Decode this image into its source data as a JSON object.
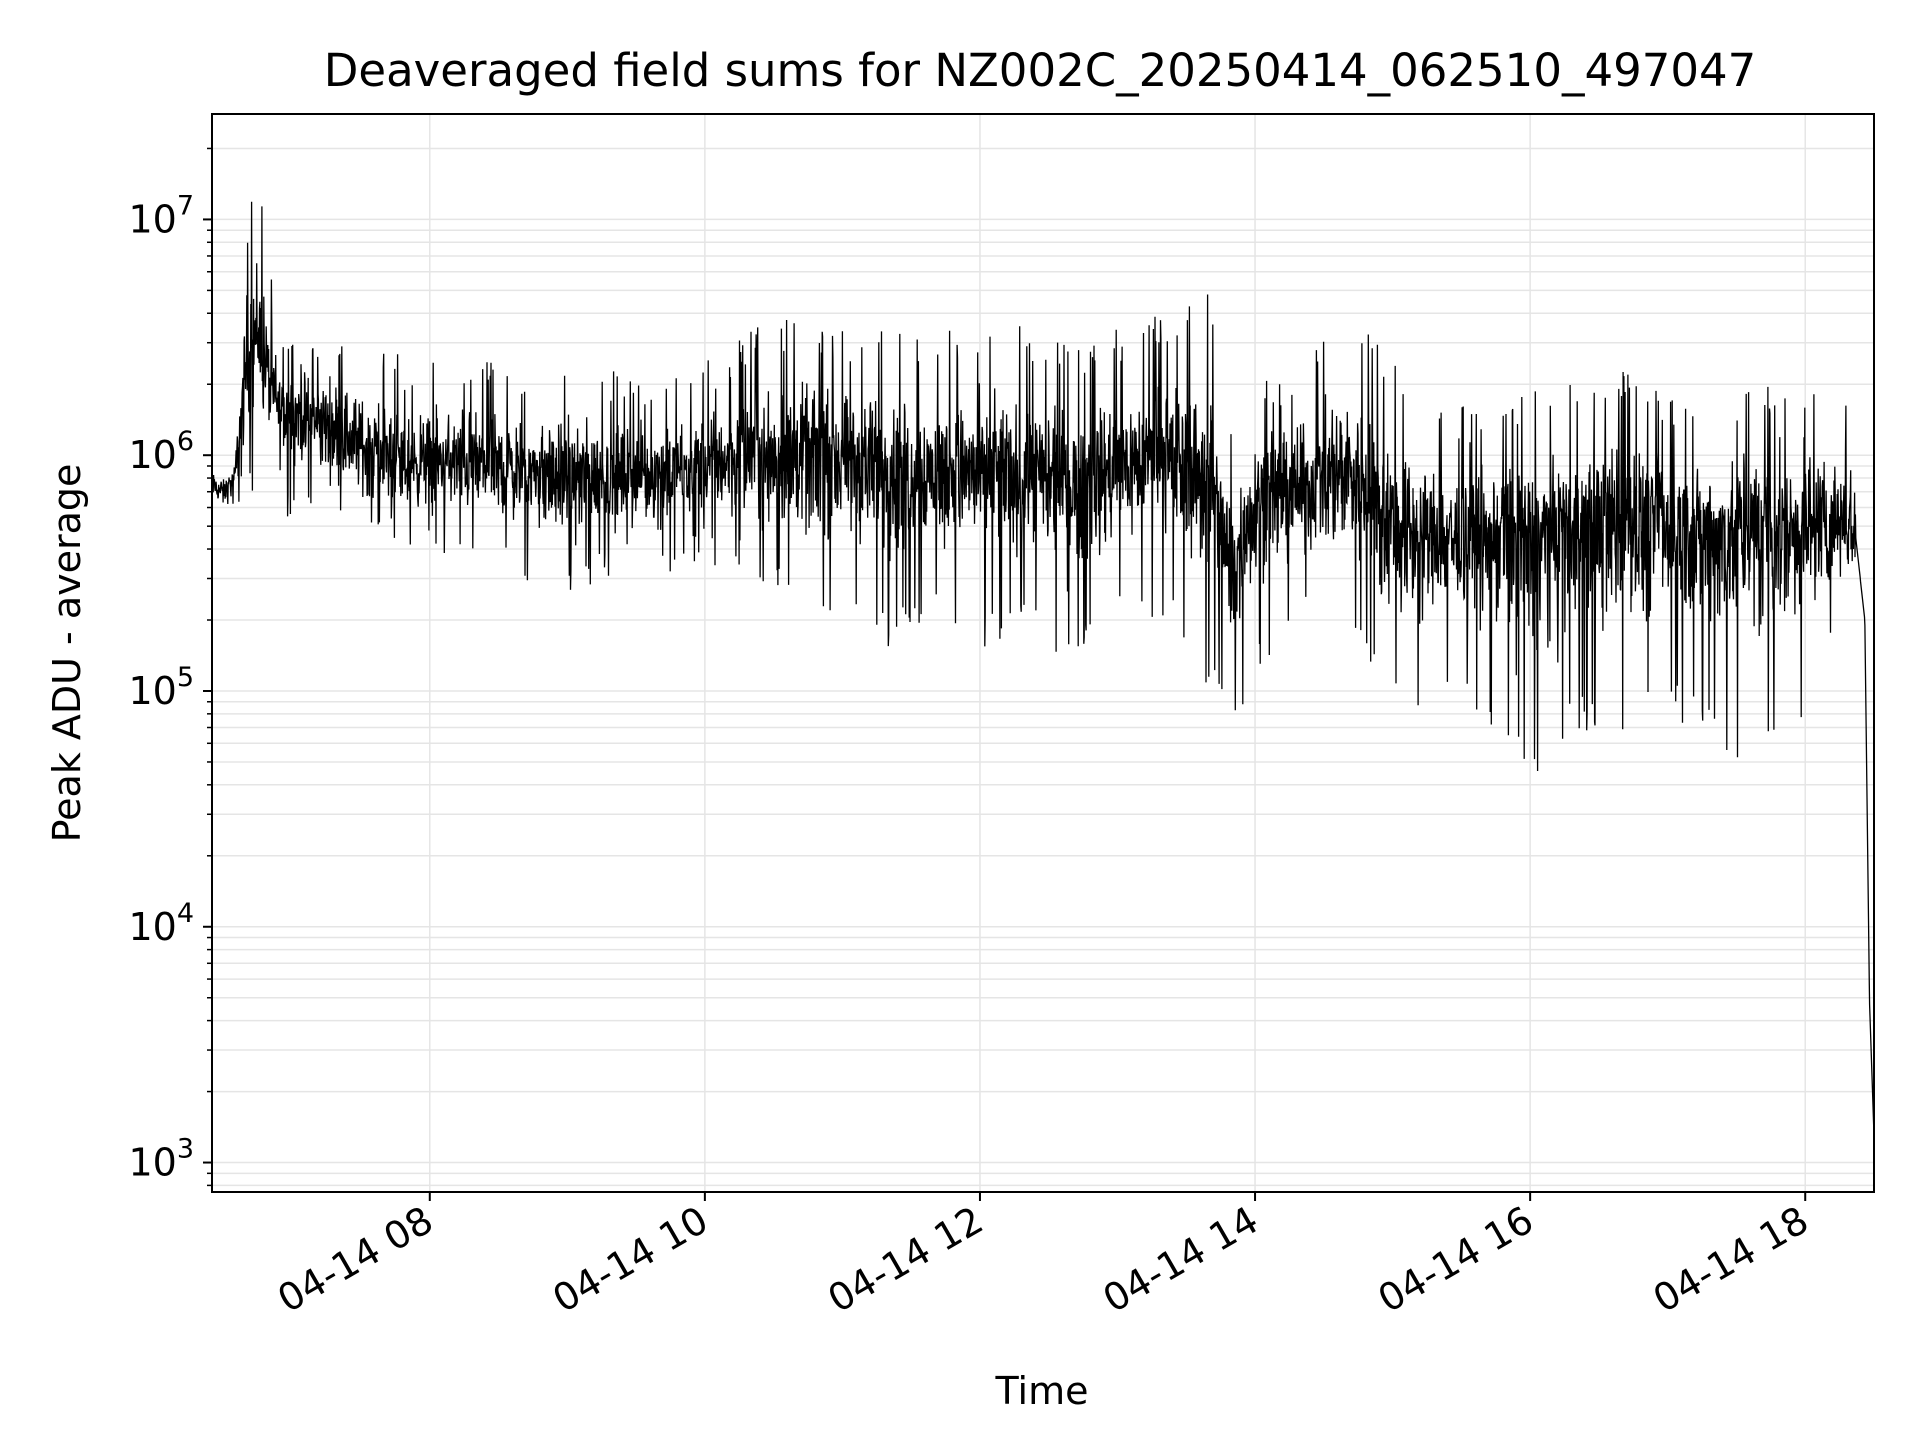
{
  "chart_data": {
    "type": "line",
    "title": "Deaveraged field sums for NZ002C_20250414_062510_497047",
    "xlabel": "Time",
    "ylabel": "Peak ADU - average",
    "x_scale": "time",
    "y_scale": "log",
    "xlim": [
      "2025-04-14 06:25",
      "2025-04-14 18:30"
    ],
    "ylim": [
      750,
      28000000
    ],
    "grid": true,
    "legend": "none",
    "line_color": "#000000",
    "grid_color": "#e5e5e5",
    "x_ticks": [
      {
        "value": "2025-04-14 08:00",
        "label": "04-14 08"
      },
      {
        "value": "2025-04-14 10:00",
        "label": "04-14 10"
      },
      {
        "value": "2025-04-14 12:00",
        "label": "04-14 12"
      },
      {
        "value": "2025-04-14 14:00",
        "label": "04-14 14"
      },
      {
        "value": "2025-04-14 16:00",
        "label": "04-14 16"
      },
      {
        "value": "2025-04-14 18:00",
        "label": "04-14 18"
      }
    ],
    "y_ticks": [
      {
        "value": 1000,
        "base": "10",
        "exp": "3"
      },
      {
        "value": 10000,
        "base": "10",
        "exp": "4"
      },
      {
        "value": 100000,
        "base": "10",
        "exp": "5"
      },
      {
        "value": 1000000,
        "base": "10",
        "exp": "6"
      },
      {
        "value": 10000000,
        "base": "10",
        "exp": "7"
      }
    ],
    "series": [
      {
        "x": [
          "2025-04-14 06:25",
          "2025-04-14 06:30",
          "2025-04-14 06:35",
          "2025-04-14 06:40",
          "2025-04-14 06:45",
          "2025-04-14 06:50",
          "2025-04-14 06:55",
          "2025-04-14 07:00",
          "2025-04-14 07:10",
          "2025-04-14 07:20",
          "2025-04-14 07:30",
          "2025-04-14 07:40",
          "2025-04-14 07:50",
          "2025-04-14 08:00",
          "2025-04-14 08:20",
          "2025-04-14 08:40",
          "2025-04-14 09:00",
          "2025-04-14 09:20",
          "2025-04-14 09:40",
          "2025-04-14 10:00",
          "2025-04-14 10:20",
          "2025-04-14 10:40",
          "2025-04-14 11:00",
          "2025-04-14 11:20",
          "2025-04-14 11:40",
          "2025-04-14 12:00",
          "2025-04-14 12:20",
          "2025-04-14 12:40",
          "2025-04-14 13:00",
          "2025-04-14 13:20",
          "2025-04-14 13:40",
          "2025-04-14 13:50",
          "2025-04-14 14:00",
          "2025-04-14 14:20",
          "2025-04-14 14:40",
          "2025-04-14 15:00",
          "2025-04-14 15:20",
          "2025-04-14 15:40",
          "2025-04-14 16:00",
          "2025-04-14 16:20",
          "2025-04-14 16:40",
          "2025-04-14 17:00",
          "2025-04-14 17:20",
          "2025-04-14 17:40",
          "2025-04-14 18:00",
          "2025-04-14 18:15",
          "2025-04-14 18:22",
          "2025-04-14 18:26",
          "2025-04-14 18:28",
          "2025-04-14 18:30"
        ],
        "y": [
          750000,
          700000,
          800000,
          2500000,
          3500000,
          2000000,
          1500000,
          1600000,
          1400000,
          1300000,
          1100000,
          1000000,
          900000,
          950000,
          900000,
          850000,
          800000,
          800000,
          850000,
          900000,
          1000000,
          1000000,
          950000,
          900000,
          850000,
          850000,
          800000,
          750000,
          900000,
          1000000,
          800000,
          300000,
          700000,
          700000,
          900000,
          500000,
          450000,
          450000,
          450000,
          500000,
          550000,
          500000,
          450000,
          500000,
          500000,
          550000,
          450000,
          200000,
          5000,
          1300
        ],
        "y_min": [
          550000,
          500000,
          550000,
          600000,
          800000,
          700000,
          500000,
          500000,
          500000,
          450000,
          400000,
          400000,
          350000,
          400000,
          350000,
          300000,
          250000,
          300000,
          300000,
          350000,
          300000,
          200000,
          180000,
          150000,
          200000,
          150000,
          180000,
          120000,
          200000,
          200000,
          100000,
          60000,
          120000,
          200000,
          180000,
          80000,
          90000,
          80000,
          40000,
          70000,
          60000,
          80000,
          60000,
          45000,
          80000,
          200000,
          200000,
          150000,
          3000,
          1200
        ],
        "y_max": [
          950000,
          900000,
          1000000,
          10000000,
          18000000,
          7000000,
          3500000,
          3000000,
          3500000,
          3500000,
          3000000,
          3200000,
          2500000,
          2500000,
          2800000,
          2500000,
          2400000,
          2300000,
          2000000,
          2500000,
          3500000,
          4000000,
          3500000,
          3500000,
          3200000,
          3800000,
          3500000,
          3000000,
          3500000,
          4000000,
          5500000,
          1500000,
          2000000,
          2500000,
          4300000,
          2500000,
          1800000,
          1500000,
          2000000,
          2000000,
          2500000,
          1800000,
          1800000,
          2000000,
          2000000,
          2500000,
          1500000,
          600000,
          10000,
          2000
        ]
      }
    ]
  }
}
